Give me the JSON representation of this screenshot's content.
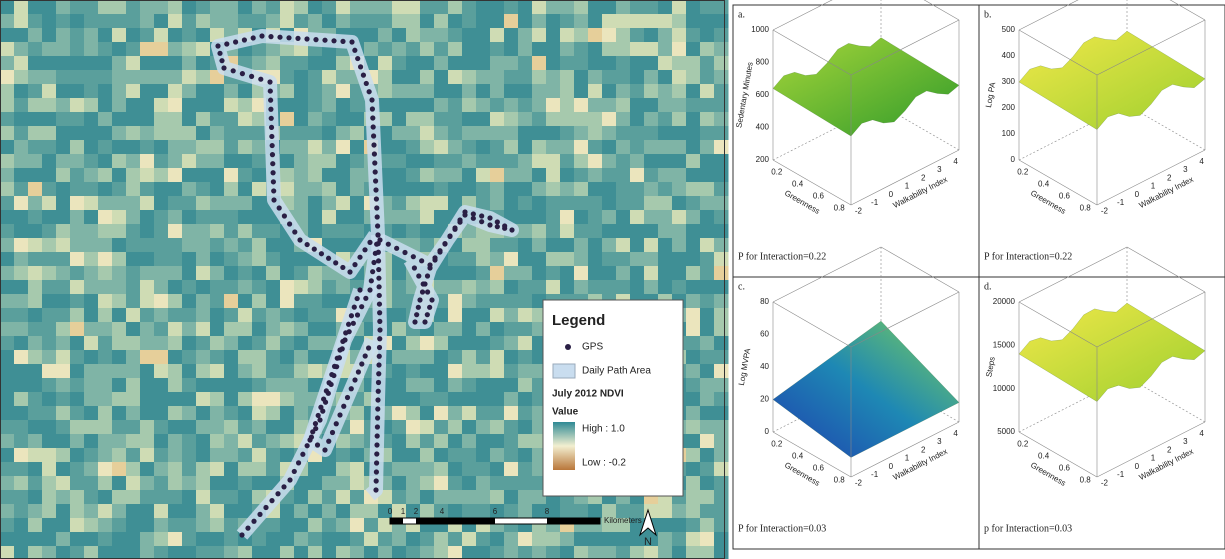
{
  "map": {
    "legend": {
      "title": "Legend",
      "items": [
        "GPS",
        "Daily Path Area"
      ],
      "layer": "July 2012 NDVI",
      "value_heading": "Value",
      "high": "High : 1.0",
      "low": "Low : -0.2"
    },
    "scale_bar": {
      "labels": [
        "0",
        "1",
        "2",
        "4",
        "6",
        "8"
      ],
      "unit": "Kilometers"
    },
    "north": "N"
  },
  "panels": [
    {
      "label": "a.",
      "z_axis": "Sedentary Minutes",
      "z_ticks": [
        "1000",
        "800",
        "600",
        "400",
        "200"
      ],
      "x_axis": "Greenness",
      "x_ticks": [
        "0.2",
        "0.4",
        "0.6",
        "0.8"
      ],
      "y_axis": "Walkability Index",
      "y_ticks": [
        "-2",
        "-1",
        "0",
        "1",
        "2",
        "3",
        "4"
      ],
      "footer": "P for Interaction=0.22"
    },
    {
      "label": "b.",
      "z_axis": "Log PA",
      "z_ticks": [
        "500",
        "400",
        "300",
        "200",
        "100",
        "0"
      ],
      "x_axis": "Greenness",
      "x_ticks": [
        "0.2",
        "0.4",
        "0.6",
        "0.8"
      ],
      "y_axis": "Walkability Index",
      "y_ticks": [
        "-2",
        "-1",
        "0",
        "1",
        "2",
        "3",
        "4"
      ],
      "footer": "P for Interaction=0.22"
    },
    {
      "label": "c.",
      "z_axis": "Log MVPA",
      "z_ticks": [
        "80",
        "60",
        "40",
        "20",
        "0"
      ],
      "x_axis": "Greenness",
      "x_ticks": [
        "0.2",
        "0.4",
        "0.6",
        "0.8"
      ],
      "y_axis": "Walkability Index",
      "y_ticks": [
        "-2",
        "-1",
        "0",
        "1",
        "2",
        "3",
        "4"
      ],
      "footer": "P for Interaction=0.03"
    },
    {
      "label": "d.",
      "z_axis": "Steps",
      "z_ticks": [
        "20000",
        "15000",
        "10000",
        "5000"
      ],
      "x_axis": "Greenness",
      "x_ticks": [
        "0.2",
        "0.4",
        "0.6",
        "0.8"
      ],
      "y_axis": "Walkability Index",
      "y_ticks": [
        "-2",
        "-1",
        "0",
        "1",
        "2",
        "3",
        "4"
      ],
      "footer": "p for Interaction=0.03"
    }
  ]
}
